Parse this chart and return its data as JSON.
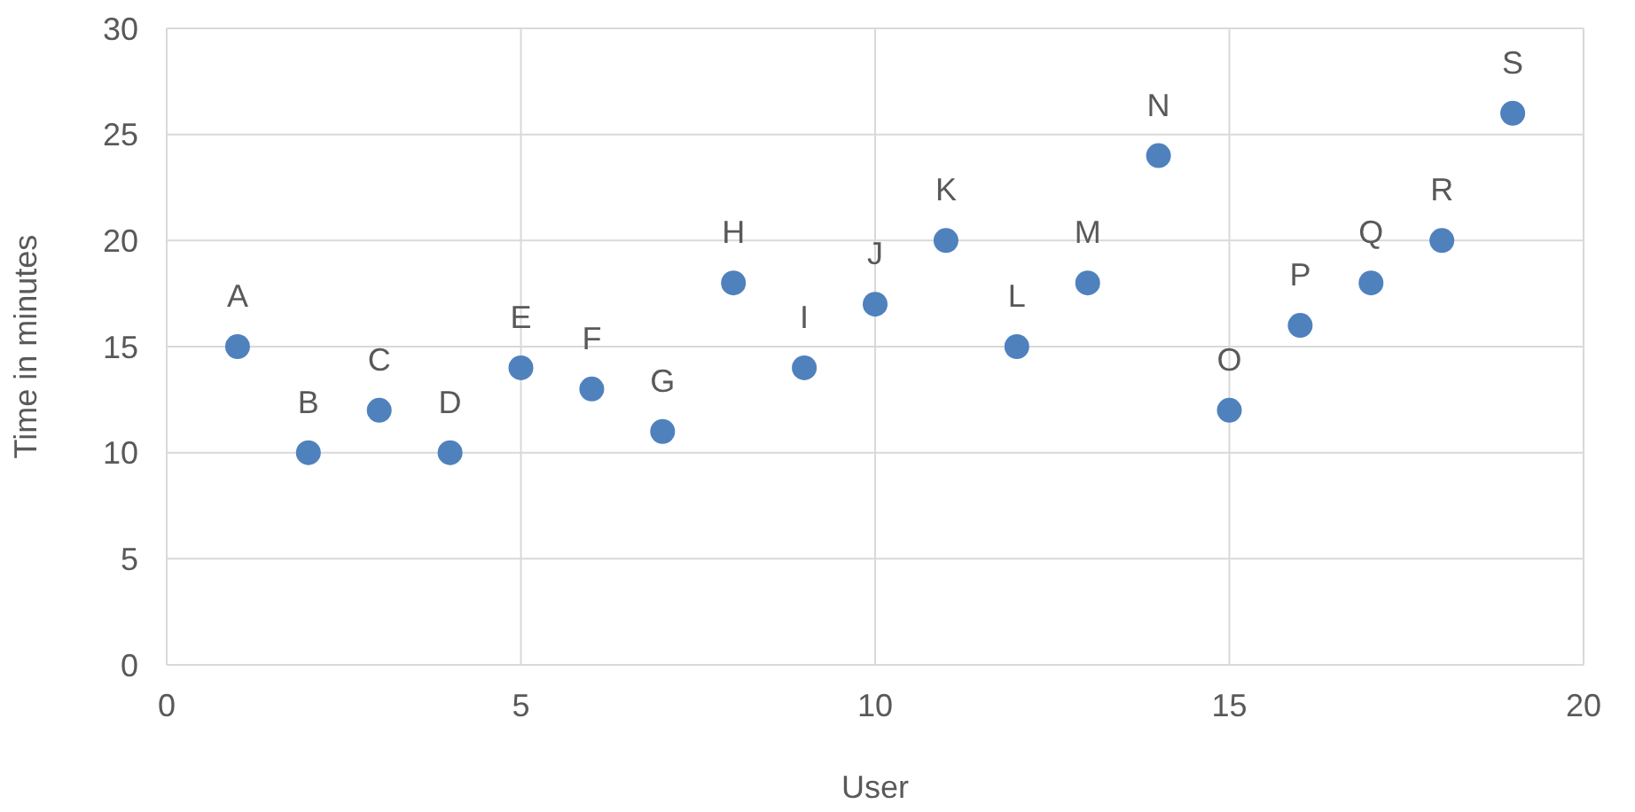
{
  "chart_data": {
    "type": "scatter",
    "xlabel": "User",
    "ylabel": "Time in minutes",
    "x": [
      1,
      2,
      3,
      4,
      5,
      6,
      7,
      8,
      9,
      10,
      11,
      12,
      13,
      14,
      15,
      16,
      17,
      18,
      19
    ],
    "values": [
      15,
      10,
      12,
      10,
      14,
      13,
      11,
      18,
      14,
      17,
      20,
      15,
      18,
      24,
      12,
      16,
      18,
      20,
      26
    ],
    "value_labels": [
      "A",
      "B",
      "C",
      "D",
      "E",
      "F",
      "G",
      "H",
      "I",
      "J",
      "K",
      "L",
      "M",
      "N",
      "O",
      "P",
      "Q",
      "R",
      "S"
    ],
    "color": "#4f81bd",
    "xlim": [
      0,
      20
    ],
    "xticks": [
      0,
      5,
      10,
      15,
      20
    ],
    "ylim": [
      0,
      30
    ],
    "yticks": [
      0,
      5,
      10,
      15,
      20,
      25,
      30
    ],
    "grid": true,
    "marker": "circle"
  }
}
